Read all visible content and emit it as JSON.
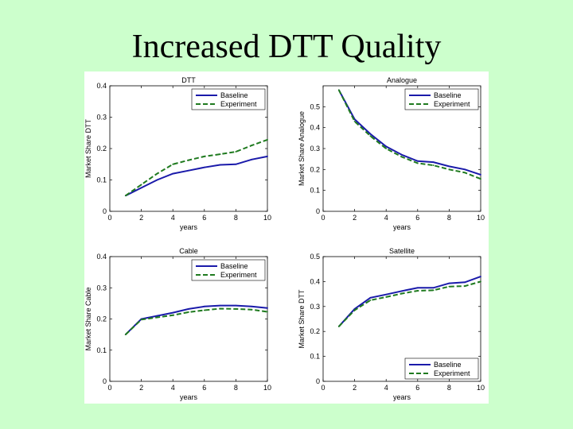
{
  "slide": {
    "title": "Increased DTT Quality"
  },
  "chart_data": [
    {
      "type": "line",
      "title": "DTT",
      "xlabel": "years",
      "ylabel": "Market Share DTT",
      "xlim": [
        0,
        10
      ],
      "ylim": [
        0,
        0.4
      ],
      "xticks": [
        "0",
        "2",
        "4",
        "6",
        "8",
        "10"
      ],
      "yticks": [
        "0",
        "0.1",
        "0.2",
        "0.3",
        "0.4"
      ],
      "legend_position": "top-right",
      "series": [
        {
          "name": "Baseline",
          "color": "#1a1aaa",
          "style": "solid",
          "x": [
            1,
            2,
            3,
            4,
            5,
            6,
            7,
            8,
            9,
            10
          ],
          "y": [
            0.05,
            0.075,
            0.1,
            0.12,
            0.13,
            0.14,
            0.148,
            0.15,
            0.165,
            0.175
          ]
        },
        {
          "name": "Experiment",
          "color": "#1f7a1f",
          "style": "dashed",
          "x": [
            1,
            2,
            3,
            4,
            5,
            6,
            7,
            8,
            9,
            10
          ],
          "y": [
            0.05,
            0.085,
            0.12,
            0.15,
            0.163,
            0.175,
            0.182,
            0.19,
            0.21,
            0.228
          ]
        }
      ]
    },
    {
      "type": "line",
      "title": "Analogue",
      "xlabel": "years",
      "ylabel": "Market Share Analogue",
      "xlim": [
        0,
        10
      ],
      "ylim": [
        0,
        0.6
      ],
      "xticks": [
        "0",
        "2",
        "4",
        "6",
        "8",
        "10"
      ],
      "yticks": [
        "0",
        "0.1",
        "0.2",
        "0.3",
        "0.4",
        "0.5"
      ],
      "legend_position": "top-right",
      "series": [
        {
          "name": "Baseline",
          "color": "#1a1aaa",
          "style": "solid",
          "x": [
            1,
            2,
            3,
            4,
            5,
            6,
            7,
            8,
            9,
            10
          ],
          "y": [
            0.58,
            0.44,
            0.37,
            0.31,
            0.27,
            0.24,
            0.235,
            0.215,
            0.2,
            0.175
          ]
        },
        {
          "name": "Experiment",
          "color": "#1f7a1f",
          "style": "dashed",
          "x": [
            1,
            2,
            3,
            4,
            5,
            6,
            7,
            8,
            9,
            10
          ],
          "y": [
            0.58,
            0.43,
            0.36,
            0.3,
            0.26,
            0.23,
            0.22,
            0.2,
            0.185,
            0.155
          ]
        }
      ]
    },
    {
      "type": "line",
      "title": "Cable",
      "xlabel": "years",
      "ylabel": "Market Share Cable",
      "xlim": [
        0,
        10
      ],
      "ylim": [
        0,
        0.4
      ],
      "xticks": [
        "0",
        "2",
        "4",
        "6",
        "8",
        "10"
      ],
      "yticks": [
        "0",
        "0.1",
        "0.2",
        "0.3",
        "0.4"
      ],
      "legend_position": "top-right",
      "series": [
        {
          "name": "Baseline",
          "color": "#1a1aaa",
          "style": "solid",
          "x": [
            1,
            2,
            3,
            4,
            5,
            6,
            7,
            8,
            9,
            10
          ],
          "y": [
            0.15,
            0.2,
            0.21,
            0.22,
            0.232,
            0.24,
            0.243,
            0.243,
            0.24,
            0.235
          ]
        },
        {
          "name": "Experiment",
          "color": "#1f7a1f",
          "style": "dashed",
          "x": [
            1,
            2,
            3,
            4,
            5,
            6,
            7,
            8,
            9,
            10
          ],
          "y": [
            0.15,
            0.198,
            0.205,
            0.212,
            0.222,
            0.228,
            0.233,
            0.232,
            0.23,
            0.223
          ]
        }
      ]
    },
    {
      "type": "line",
      "title": "Satellite",
      "xlabel": "years",
      "ylabel": "Market Share DTT",
      "xlim": [
        0,
        10
      ],
      "ylim": [
        0,
        0.5
      ],
      "xticks": [
        "0",
        "2",
        "4",
        "6",
        "8",
        "10"
      ],
      "yticks": [
        "0",
        "0.1",
        "0.2",
        "0.3",
        "0.4",
        "0.5"
      ],
      "legend_position": "bottom-right",
      "series": [
        {
          "name": "Baseline",
          "color": "#1a1aaa",
          "style": "solid",
          "x": [
            1,
            2,
            3,
            4,
            5,
            6,
            7,
            8,
            9,
            10
          ],
          "y": [
            0.22,
            0.29,
            0.335,
            0.348,
            0.362,
            0.375,
            0.375,
            0.393,
            0.397,
            0.42
          ]
        },
        {
          "name": "Experiment",
          "color": "#1f7a1f",
          "style": "dashed",
          "x": [
            1,
            2,
            3,
            4,
            5,
            6,
            7,
            8,
            9,
            10
          ],
          "y": [
            0.22,
            0.285,
            0.325,
            0.338,
            0.352,
            0.363,
            0.365,
            0.38,
            0.382,
            0.4
          ]
        }
      ]
    }
  ]
}
